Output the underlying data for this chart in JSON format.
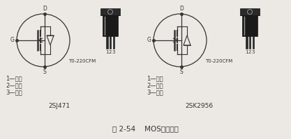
{
  "bg_color": "#ece9e4",
  "title": "图 2-54    MOS场效应管",
  "left_label": "2SJ471",
  "right_label": "2SK2956",
  "package_label": "T0-220CFM",
  "legend_left": [
    "1—栅极",
    "2—漏极",
    "3—源极"
  ],
  "legend_right": [
    "1—栅极",
    "2—漏极",
    "3—源极"
  ]
}
